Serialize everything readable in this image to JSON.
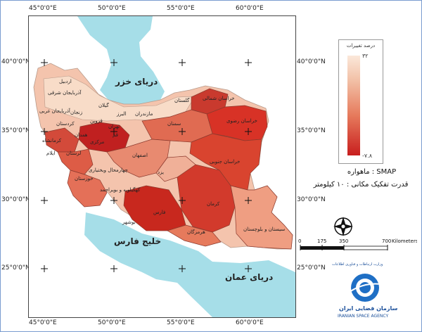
{
  "ticks": {
    "top": [
      "45°0'0\"E",
      "50°0'0\"E",
      "55°0'0\"E",
      "60°0'0\"E"
    ],
    "bottom": [
      "45°0'0\"E",
      "50°0'0\"E",
      "55°0'0\"E",
      "60°0'0\"E"
    ],
    "left": [
      "40°0'0\"N",
      "35°0'0\"N",
      "30°0'0\"N",
      "25°0'0\"N"
    ],
    "right": [
      "40°0'0\"N",
      "35°0'0\"N",
      "30°0'0\"N",
      "25°0'0\"N"
    ]
  },
  "seas": {
    "caspian": "دریای خزر",
    "persian_gulf": "خلیج فارس",
    "oman": "دریای عمان"
  },
  "provinces": [
    "اردبیل",
    "آذربایجان شرقی",
    "آذربایجان غربی",
    "زنجان",
    "گیلان",
    "مازندران",
    "گلستان",
    "خراسان شمالی",
    "خراسان رضوی",
    "کردستان",
    "قزوین",
    "البرز",
    "تهران",
    "سمنان",
    "قم",
    "همدان",
    "مرکزی",
    "کرمانشاه",
    "ایلام",
    "لرستان",
    "اصفهان",
    "خوزستان",
    "چهارمحال وبختیاری",
    "یزد",
    "خراسان جنوبی",
    "کهگیلویه و بویراحمد",
    "فارس",
    "بوشهر",
    "کرمان",
    "هرمزگان",
    "سیستان و بلوچستان"
  ],
  "legend": {
    "title": "درصد تغییرات",
    "max_label": "۳۲",
    "min_label": "-۷.۸",
    "colors": [
      "#fbe8da",
      "#f2c0a6",
      "#e67a5c",
      "#c81e1e"
    ]
  },
  "info": {
    "satellite": "ماهواره : SMAP",
    "resolution": "قدرت تفکیک مکانی : ۱۰ کیلومتر"
  },
  "scale": {
    "labels": [
      "0",
      "175",
      "350",
      "700"
    ],
    "unit": "Kilometers"
  },
  "logo": {
    "text_top": "وزارت ارتباطات و فناوری اطلاعات",
    "text_fa": "سازمان فضایی ایران",
    "text_en": "IRANIAN SPACE AGENCY"
  }
}
